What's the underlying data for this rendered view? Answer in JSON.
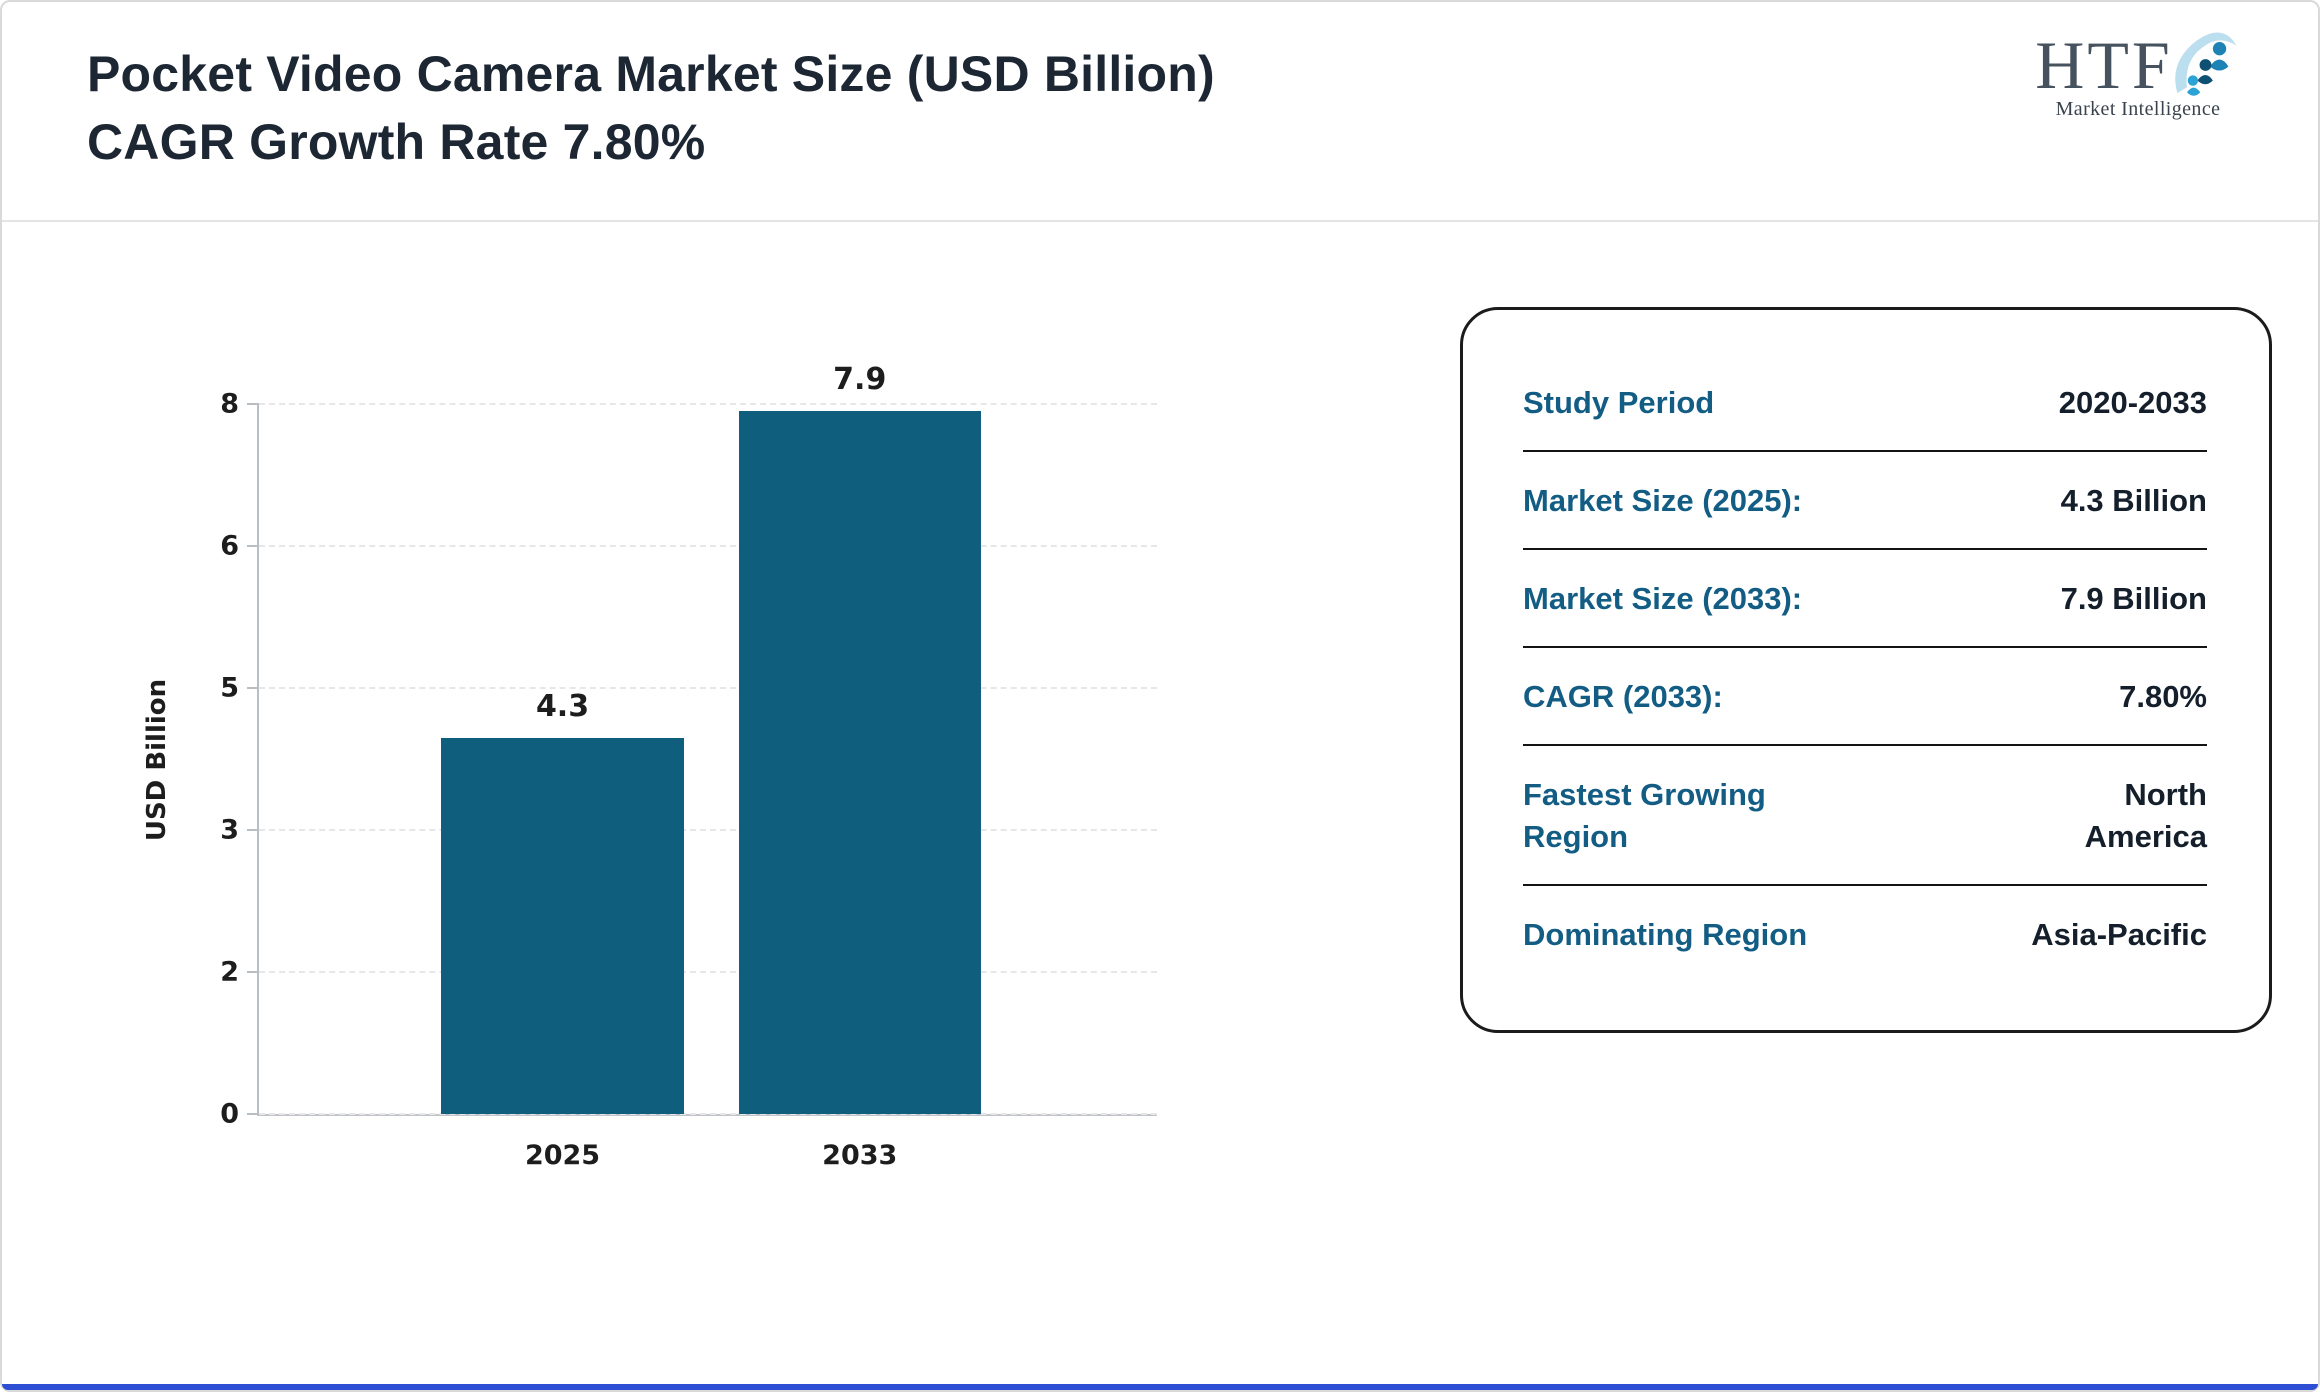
{
  "page": {
    "border_color": "#d9d9d9",
    "bottom_bar_color": "#2e4fd4"
  },
  "header": {
    "title_line1": "Pocket Video Camera Market Size (USD Billion)",
    "title_line2": "CAGR Growth Rate 7.80%",
    "logo": {
      "text": "HTF",
      "subtext": "Market Intelligence"
    }
  },
  "chart_data": {
    "type": "bar",
    "title": "Pocket Video Camera Market Size (USD Billion)",
    "categories": [
      "2025",
      "2033"
    ],
    "values": [
      4.3,
      7.9
    ],
    "value_labels": [
      "4.3",
      "7.9"
    ],
    "xlabel": "",
    "ylabel": "USD Billion",
    "yticks": [
      0,
      2,
      3,
      5,
      6,
      8
    ],
    "ylim": [
      0,
      8
    ],
    "grid": "dashed-horizontal",
    "legend": "none",
    "bar_color": "#0f5e7d"
  },
  "info_box": {
    "label_color": "#135d85",
    "value_color": "#141f2b",
    "rows": [
      {
        "label": "Study Period",
        "value": "2020-2033"
      },
      {
        "label": "Market Size (2025):",
        "value": "4.3 Billion"
      },
      {
        "label": "Market Size (2033):",
        "value": "7.9 Billion"
      },
      {
        "label": "CAGR (2033):",
        "value": "7.80%"
      },
      {
        "label": "Fastest Growing Region",
        "value": "North America"
      },
      {
        "label": "Dominating Region",
        "value": "Asia-Pacific"
      }
    ]
  }
}
